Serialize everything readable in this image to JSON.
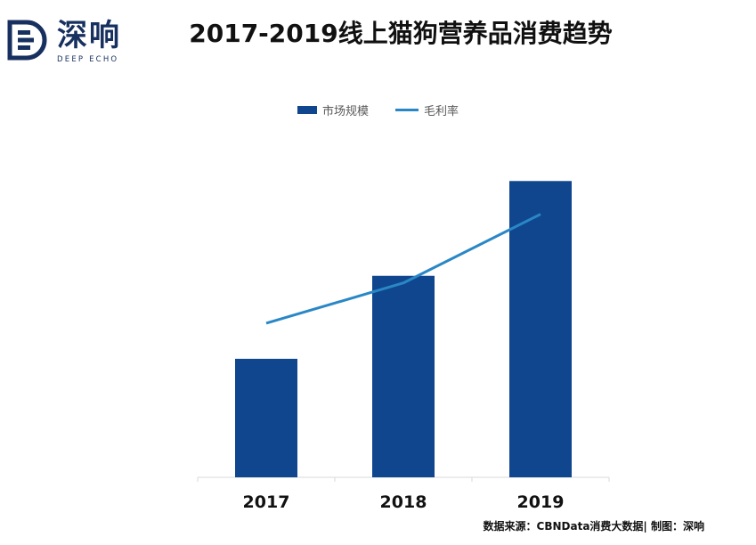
{
  "logo": {
    "cn": "深响",
    "en": "DEEP ECHO"
  },
  "chart_data": {
    "type": "bar",
    "title": "2017-2019线上猫狗营养品消费趋势",
    "categories": [
      "2017",
      "2018",
      "2019"
    ],
    "series": [
      {
        "name": "市场规模",
        "type": "bar",
        "values": [
          1.0,
          1.7,
          2.5
        ],
        "color": "#0f468e"
      },
      {
        "name": "毛利率",
        "type": "line",
        "values": [
          1.3,
          1.64,
          2.22
        ],
        "color": "#2a87c6"
      }
    ],
    "ylim": [
      -0.25,
      2.75
    ],
    "grid": false,
    "axis_values_printed": false,
    "legend": "top-center"
  },
  "source_note": "数据来源：CBNData消费大数据| 制图：深响"
}
